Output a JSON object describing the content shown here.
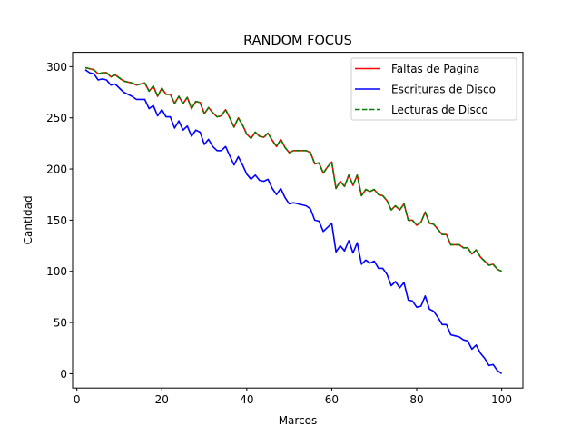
{
  "chart_data": {
    "type": "line",
    "title": "RANDOM FOCUS",
    "xlabel": "Marcos",
    "ylabel": "Cantidad",
    "xlim": [
      -1,
      105
    ],
    "ylim": [
      -14,
      314
    ],
    "xticks": [
      0,
      20,
      40,
      60,
      80,
      100
    ],
    "yticks": [
      0,
      50,
      100,
      150,
      200,
      250,
      300
    ],
    "legend_position": "top-right",
    "grid": false,
    "x": [
      2,
      3,
      4,
      5,
      6,
      7,
      8,
      9,
      10,
      11,
      12,
      13,
      14,
      15,
      16,
      17,
      18,
      19,
      20,
      21,
      22,
      23,
      24,
      25,
      26,
      27,
      28,
      29,
      30,
      31,
      32,
      33,
      34,
      35,
      36,
      37,
      38,
      39,
      40,
      41,
      42,
      43,
      44,
      45,
      46,
      47,
      48,
      49,
      50,
      51,
      52,
      53,
      54,
      55,
      56,
      57,
      58,
      59,
      60,
      61,
      62,
      63,
      64,
      65,
      66,
      67,
      68,
      69,
      70,
      71,
      72,
      73,
      74,
      75,
      76,
      77,
      78,
      79,
      80,
      81,
      82,
      83,
      84,
      85,
      86,
      87,
      88,
      89,
      90,
      91,
      92,
      93,
      94,
      95,
      96,
      97,
      98,
      99,
      100
    ],
    "series": [
      {
        "name": "Faltas de Pagina",
        "color": "#ff0000",
        "style": "solid",
        "values": [
          299,
          298,
          297,
          293,
          294,
          294,
          290,
          292,
          289,
          286,
          285,
          284,
          282,
          283,
          284,
          276,
          281,
          271,
          279,
          273,
          273,
          264,
          271,
          264,
          270,
          259,
          266,
          265,
          254,
          260,
          255,
          251,
          252,
          258,
          250,
          241,
          250,
          243,
          234,
          230,
          236,
          232,
          231,
          235,
          228,
          222,
          229,
          221,
          216,
          218,
          218,
          218,
          218,
          216,
          205,
          206,
          196,
          202,
          207,
          181,
          188,
          183,
          194,
          184,
          194,
          174,
          180,
          178,
          180,
          175,
          174,
          169,
          160,
          164,
          160,
          166,
          150,
          150,
          145,
          148,
          158,
          147,
          146,
          141,
          136,
          136,
          126,
          126,
          126,
          123,
          123,
          117,
          121,
          114,
          110,
          106,
          107,
          102,
          100
        ]
      },
      {
        "name": "Escrituras de Disco",
        "color": "#0000ff",
        "style": "solid",
        "values": [
          297,
          294,
          293,
          287,
          288,
          287,
          282,
          283,
          279,
          275,
          273,
          271,
          268,
          268,
          268,
          259,
          262,
          252,
          258,
          251,
          251,
          240,
          247,
          238,
          242,
          232,
          238,
          236,
          224,
          229,
          222,
          218,
          218,
          222,
          213,
          204,
          212,
          204,
          195,
          190,
          194,
          189,
          188,
          190,
          181,
          175,
          181,
          172,
          166,
          167,
          166,
          165,
          164,
          161,
          150,
          149,
          139,
          143,
          147,
          119,
          125,
          120,
          130,
          118,
          128,
          107,
          111,
          108,
          110,
          103,
          103,
          97,
          86,
          90,
          84,
          89,
          72,
          71,
          65,
          66,
          76,
          63,
          61,
          55,
          48,
          48,
          38,
          37,
          36,
          33,
          32,
          24,
          28,
          20,
          15,
          8,
          9,
          3,
          0
        ]
      },
      {
        "name": "Lecturas de Disco",
        "color": "#008000",
        "style": "dashed",
        "values": [
          299,
          298,
          297,
          293,
          294,
          294,
          290,
          292,
          289,
          286,
          285,
          284,
          282,
          283,
          284,
          276,
          281,
          271,
          279,
          273,
          273,
          264,
          271,
          264,
          270,
          259,
          266,
          265,
          254,
          260,
          255,
          251,
          252,
          258,
          250,
          241,
          250,
          243,
          234,
          230,
          236,
          232,
          231,
          235,
          228,
          222,
          229,
          221,
          216,
          218,
          218,
          218,
          218,
          216,
          205,
          206,
          196,
          202,
          207,
          181,
          188,
          183,
          194,
          184,
          194,
          174,
          180,
          178,
          180,
          175,
          174,
          169,
          160,
          164,
          160,
          166,
          150,
          150,
          145,
          148,
          158,
          147,
          146,
          141,
          136,
          136,
          126,
          126,
          126,
          123,
          123,
          117,
          121,
          114,
          110,
          106,
          107,
          102,
          100
        ]
      }
    ]
  }
}
